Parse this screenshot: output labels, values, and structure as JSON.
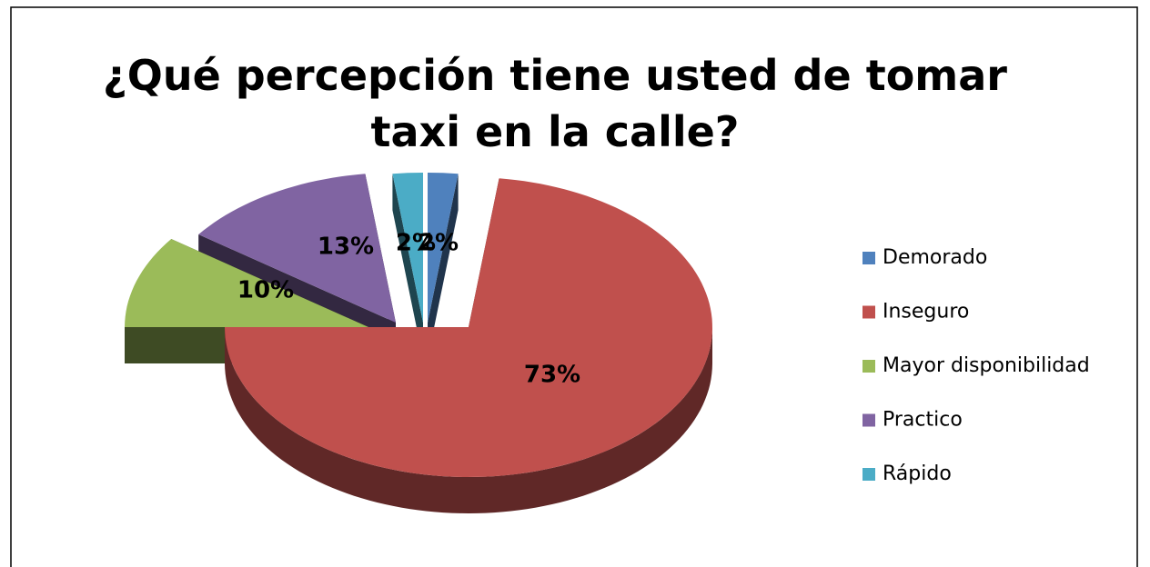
{
  "chart_data": {
    "type": "pie3d",
    "title": "¿Qué percepción tiene usted de tomar taxi en la calle?",
    "categories": [
      "Demorado",
      "Inseguro",
      "Mayor disponibilidad",
      "Practico",
      "Rápido"
    ],
    "values": [
      2,
      73,
      10,
      13,
      2
    ],
    "value_labels": [
      "2%",
      "73%",
      "10%",
      "13%",
      "2%"
    ],
    "colors": [
      "#4f81bd",
      "#c0504d",
      "#9bbb59",
      "#8064a2",
      "#4bacc6"
    ],
    "legend": "right"
  }
}
